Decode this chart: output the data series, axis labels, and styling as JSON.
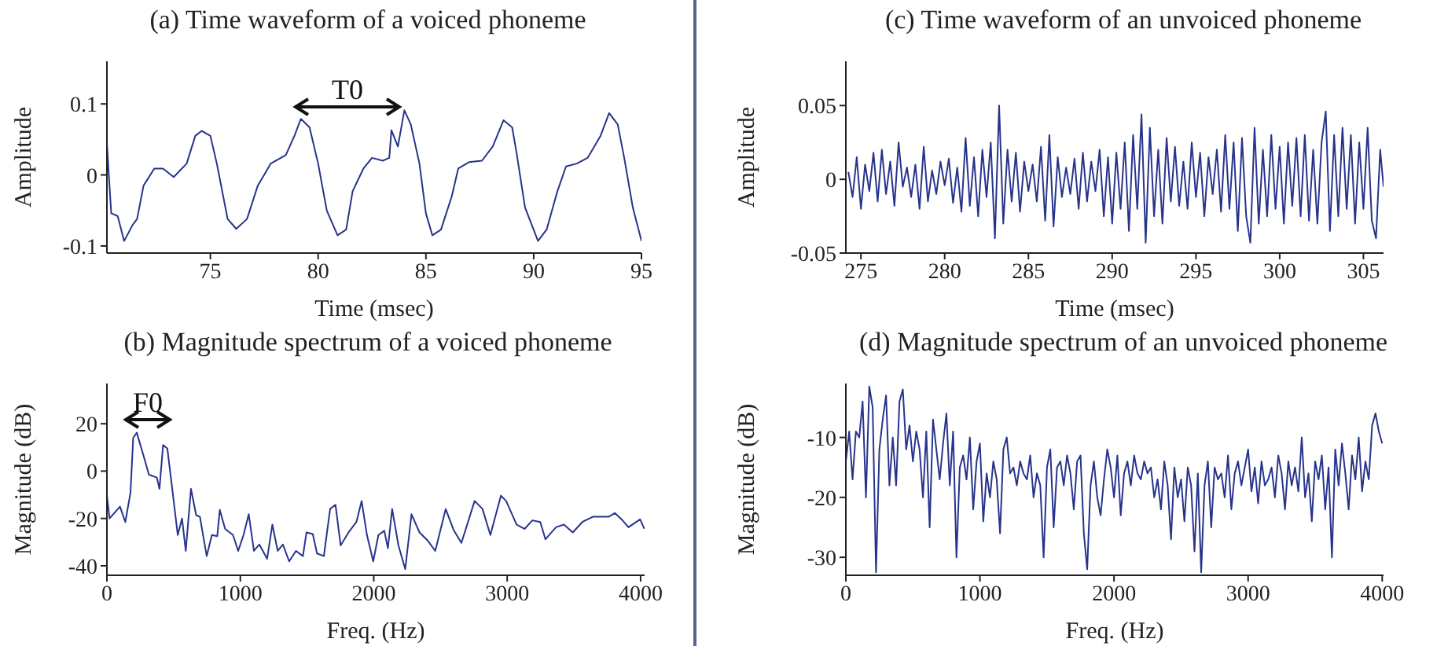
{
  "chart_data": [
    {
      "type": "line",
      "title": "(a) Time waveform of a voiced phoneme",
      "xlabel": "Time (msec)",
      "ylabel": "Amplitude",
      "xlim": [
        70.2,
        95
      ],
      "xticks": [
        75,
        80,
        85,
        90,
        95
      ],
      "ylim": [
        -0.11,
        0.16
      ],
      "yticks": [
        -0.1,
        0,
        0.1
      ],
      "color": "#27348b",
      "annotations": [
        "T0"
      ],
      "x": [
        70.2,
        70.4,
        70.7,
        71.0,
        71.4,
        71.6,
        71.9,
        72.4,
        72.8,
        73.3,
        73.9,
        74.3,
        74.6,
        75.0,
        75.3,
        75.8,
        76.2,
        76.7,
        77.2,
        77.8,
        78.5,
        78.9,
        79.2,
        79.6,
        80.0,
        80.4,
        80.9,
        81.3,
        81.6,
        82.1,
        82.5,
        83.0,
        83.3,
        83.4,
        83.7,
        84.0,
        84.3,
        84.7,
        85.0,
        85.3,
        85.7,
        86.2,
        86.5,
        87.0,
        87.6,
        88.1,
        88.6,
        89.0,
        89.2,
        89.6,
        90.2,
        90.6,
        91.1,
        91.5,
        92.0,
        92.5,
        93.1,
        93.5,
        93.9,
        94.2,
        94.6,
        94.9,
        95.0
      ],
      "values": [
        0.044,
        -0.054,
        -0.058,
        -0.093,
        -0.07,
        -0.062,
        -0.015,
        0.009,
        0.009,
        -0.003,
        0.016,
        0.055,
        0.062,
        0.055,
        0.016,
        -0.062,
        -0.076,
        -0.062,
        -0.015,
        0.016,
        0.028,
        0.055,
        0.079,
        0.067,
        0.016,
        -0.05,
        -0.085,
        -0.077,
        -0.023,
        0.009,
        0.024,
        0.02,
        0.024,
        0.063,
        0.04,
        0.091,
        0.071,
        0.016,
        -0.054,
        -0.085,
        -0.077,
        -0.03,
        0.009,
        0.018,
        0.02,
        0.04,
        0.077,
        0.067,
        0.032,
        -0.046,
        -0.093,
        -0.077,
        -0.023,
        0.012,
        0.016,
        0.024,
        0.055,
        0.087,
        0.071,
        0.024,
        -0.046,
        -0.081,
        -0.093
      ]
    },
    {
      "type": "line",
      "title": "(c) Time waveform of an unvoiced phoneme",
      "xlabel": "Time (msec)",
      "ylabel": "Amplitude",
      "xlim": [
        274.1,
        306.2
      ],
      "xticks": [
        275,
        280,
        285,
        290,
        295,
        300,
        305
      ],
      "ylim": [
        -0.05,
        0.08
      ],
      "yticks": [
        -0.05,
        0,
        0.05
      ],
      "color": "#27348b",
      "x": [
        274.25,
        274.5,
        274.75,
        275,
        275.25,
        275.5,
        275.75,
        276,
        276.25,
        276.5,
        276.75,
        277,
        277.25,
        277.5,
        277.75,
        278,
        278.25,
        278.5,
        278.75,
        279,
        279.25,
        279.5,
        279.75,
        280,
        280.25,
        280.5,
        280.75,
        281,
        281.25,
        281.5,
        281.75,
        282,
        282.25,
        282.5,
        282.75,
        283,
        283.25,
        283.5,
        283.75,
        284,
        284.25,
        284.5,
        284.75,
        285,
        285.25,
        285.5,
        285.75,
        286,
        286.25,
        286.5,
        286.75,
        287,
        287.25,
        287.5,
        287.75,
        288,
        288.25,
        288.5,
        288.75,
        289,
        289.25,
        289.5,
        289.75,
        290,
        290.25,
        290.5,
        290.75,
        291,
        291.25,
        291.5,
        291.75,
        292,
        292.25,
        292.5,
        292.75,
        293,
        293.25,
        293.5,
        293.75,
        294,
        294.25,
        294.5,
        294.75,
        295,
        295.25,
        295.5,
        295.75,
        296,
        296.25,
        296.5,
        296.75,
        297,
        297.25,
        297.5,
        297.75,
        298,
        298.25,
        298.5,
        298.75,
        299,
        299.25,
        299.5,
        299.75,
        300,
        300.25,
        300.5,
        300.75,
        301,
        301.25,
        301.5,
        301.75,
        302,
        302.25,
        302.5,
        302.75,
        303,
        303.25,
        303.5,
        303.75,
        304,
        304.25,
        304.5,
        304.75,
        305,
        305.25,
        305.5,
        305.75,
        306,
        306.2
      ],
      "values": [
        0.005,
        -0.012,
        0.015,
        -0.02,
        0.01,
        -0.008,
        0.018,
        -0.015,
        0.02,
        -0.01,
        0.012,
        -0.018,
        0.025,
        -0.005,
        0.008,
        -0.012,
        0.01,
        -0.02,
        0.022,
        -0.015,
        0.006,
        -0.01,
        0.012,
        -0.004,
        0.014,
        -0.016,
        0.008,
        -0.022,
        0.028,
        -0.018,
        0.015,
        -0.025,
        0.02,
        -0.012,
        0.025,
        -0.04,
        0.05,
        -0.03,
        0.02,
        -0.015,
        0.018,
        -0.022,
        0.012,
        -0.008,
        0.01,
        -0.015,
        0.022,
        -0.028,
        0.03,
        -0.032,
        0.015,
        -0.012,
        0.008,
        -0.01,
        0.014,
        -0.02,
        0.018,
        -0.015,
        0.012,
        -0.008,
        0.02,
        -0.025,
        0.015,
        -0.03,
        0.018,
        -0.02,
        0.025,
        -0.035,
        0.03,
        -0.02,
        0.044,
        -0.043,
        0.035,
        -0.025,
        0.02,
        -0.03,
        0.028,
        -0.015,
        0.022,
        -0.018,
        0.012,
        -0.02,
        0.025,
        -0.012,
        0.018,
        -0.025,
        0.015,
        -0.01,
        0.02,
        -0.022,
        0.03,
        -0.02,
        0.025,
        -0.035,
        0.028,
        -0.025,
        -0.043,
        0.035,
        -0.03,
        0.02,
        -0.025,
        0.03,
        -0.02,
        0.022,
        -0.03,
        0.025,
        -0.018,
        0.028,
        -0.025,
        0.03,
        -0.028,
        0.02,
        -0.03,
        0.025,
        0.046,
        -0.035,
        0.03,
        -0.025,
        0.035,
        -0.02,
        0.03,
        -0.03,
        0.025,
        -0.02,
        0.035,
        -0.028,
        -0.04,
        0.02,
        -0.005
      ]
    },
    {
      "type": "line",
      "title": "(b) Magnitude spectrum of a voiced phoneme",
      "xlabel": "Freq. (Hz)",
      "ylabel": "Magnitude (dB)",
      "xlim": [
        0,
        4030
      ],
      "xticks": [
        0,
        1000,
        2000,
        3000,
        4000
      ],
      "ylim": [
        -44,
        37
      ],
      "yticks": [
        -40,
        -20,
        0,
        20
      ],
      "color": "#27348b",
      "annotations": [
        "F0"
      ],
      "x": [
        0,
        20,
        98,
        138,
        177,
        197,
        224,
        276,
        315,
        374,
        394,
        421,
        453,
        484,
        531,
        563,
        591,
        630,
        669,
        697,
        748,
        787,
        827,
        846,
        886,
        945,
        984,
        1024,
        1063,
        1102,
        1142,
        1201,
        1240,
        1280,
        1319,
        1366,
        1417,
        1469,
        1496,
        1543,
        1575,
        1626,
        1673,
        1713,
        1752,
        1811,
        1870,
        1909,
        1949,
        1996,
        2035,
        2079,
        2106,
        2138,
        2185,
        2236,
        2283,
        2343,
        2402,
        2461,
        2539,
        2598,
        2657,
        2756,
        2815,
        2874,
        2953,
        2992,
        3071,
        3130,
        3189,
        3248,
        3287,
        3366,
        3425,
        3492,
        3563,
        3642,
        3760,
        3807,
        3858,
        3909,
        3996,
        4028
      ],
      "values": [
        -10.4,
        -20,
        -15,
        -21.5,
        -9,
        14,
        16.2,
        6.2,
        -1.5,
        -2.7,
        -7.5,
        11,
        9.5,
        -4.9,
        -27,
        -20,
        -33.7,
        -7.5,
        -18.6,
        -19.3,
        -35.9,
        -27,
        -27.5,
        -16.4,
        -24.4,
        -27,
        -33.7,
        -27,
        -18.2,
        -33.7,
        -31,
        -37,
        -22.6,
        -33.7,
        -31,
        -38.1,
        -33.7,
        -35.9,
        -25.9,
        -26.6,
        -34.8,
        -35.9,
        -16,
        -14.2,
        -31.4,
        -25.9,
        -21.5,
        -12.6,
        -27,
        -38.1,
        -27,
        -25.2,
        -32.6,
        -16,
        -31.4,
        -41.4,
        -18.2,
        -25.9,
        -29.2,
        -33.7,
        -16,
        -24.8,
        -30.3,
        -12.6,
        -16,
        -27,
        -10.4,
        -12.6,
        -22.6,
        -24.4,
        -20.8,
        -21.5,
        -28.8,
        -23.7,
        -22.6,
        -25.9,
        -21.5,
        -19.3,
        -19.3,
        -17.7,
        -20.4,
        -23.7,
        -20.4,
        -24.4
      ]
    },
    {
      "type": "line",
      "title": "(d) Magnitude spectrum of an unvoiced phoneme",
      "xlabel": "Freq. (Hz)",
      "ylabel": "Magnitude (dB)",
      "xlim": [
        0,
        4010
      ],
      "xticks": [
        0,
        1000,
        2000,
        3000,
        4000
      ],
      "ylim": [
        -33,
        -1
      ],
      "yticks": [
        -30,
        -20,
        -10
      ],
      "color": "#27348b",
      "x": [
        0,
        25,
        50,
        75,
        100,
        125,
        150,
        175,
        200,
        225,
        250,
        275,
        300,
        325,
        350,
        375,
        400,
        425,
        450,
        475,
        500,
        525,
        550,
        575,
        600,
        625,
        650,
        675,
        700,
        725,
        750,
        775,
        800,
        825,
        850,
        875,
        900,
        925,
        950,
        975,
        1000,
        1025,
        1050,
        1075,
        1100,
        1125,
        1150,
        1175,
        1200,
        1225,
        1250,
        1275,
        1300,
        1325,
        1350,
        1375,
        1400,
        1425,
        1450,
        1475,
        1500,
        1525,
        1550,
        1575,
        1600,
        1625,
        1650,
        1675,
        1700,
        1725,
        1750,
        1775,
        1800,
        1825,
        1850,
        1875,
        1900,
        1925,
        1950,
        1975,
        2000,
        2025,
        2050,
        2075,
        2100,
        2125,
        2150,
        2175,
        2200,
        2225,
        2250,
        2275,
        2300,
        2325,
        2350,
        2375,
        2400,
        2425,
        2450,
        2475,
        2500,
        2525,
        2550,
        2575,
        2600,
        2625,
        2650,
        2675,
        2700,
        2725,
        2750,
        2775,
        2800,
        2825,
        2850,
        2875,
        2900,
        2925,
        2950,
        2975,
        3000,
        3025,
        3050,
        3075,
        3100,
        3125,
        3150,
        3175,
        3200,
        3225,
        3250,
        3275,
        3300,
        3325,
        3350,
        3375,
        3400,
        3425,
        3450,
        3475,
        3500,
        3525,
        3550,
        3575,
        3600,
        3625,
        3650,
        3675,
        3700,
        3725,
        3750,
        3775,
        3800,
        3825,
        3850,
        3875,
        3900,
        3925,
        3950,
        3975,
        4000
      ],
      "values": [
        -14,
        -9,
        -17,
        -9,
        -10,
        -4,
        -20,
        -1.5,
        -5,
        -32.5,
        -12,
        -7,
        -3,
        -18,
        -10,
        -18,
        -4,
        -2,
        -12,
        -8,
        -14,
        -9,
        -12,
        -20,
        -9,
        -25,
        -7,
        -12,
        -17,
        -11,
        -6,
        -18,
        -9,
        -30,
        -15,
        -13,
        -17,
        -10,
        -22,
        -14,
        -11,
        -24,
        -16,
        -20,
        -14,
        -17,
        -26,
        -12,
        -10,
        -16,
        -15,
        -18,
        -14,
        -16,
        -17,
        -13,
        -20,
        -16,
        -18,
        -30,
        -15,
        -12,
        -25,
        -15,
        -14,
        -18,
        -13,
        -16,
        -22,
        -14,
        -13,
        -26,
        -32,
        -18,
        -14,
        -20,
        -23,
        -17,
        -12,
        -15,
        -20,
        -13,
        -23,
        -16,
        -14,
        -18,
        -13,
        -16,
        -17,
        -14,
        -16,
        -15,
        -20,
        -17,
        -22,
        -14,
        -18,
        -27,
        -15,
        -20,
        -17,
        -24,
        -15,
        -18,
        -29,
        -16,
        -32.5,
        -18,
        -14,
        -25,
        -15,
        -17,
        -16,
        -20,
        -13,
        -22,
        -16,
        -14,
        -18,
        -15,
        -12,
        -19,
        -15,
        -21,
        -14,
        -18,
        -17,
        -15,
        -20,
        -13,
        -16,
        -22,
        -14,
        -18,
        -15,
        -19,
        -10,
        -20,
        -16,
        -24,
        -14,
        -17,
        -13,
        -22,
        -15,
        -30,
        -12,
        -18,
        -11,
        -16,
        -22,
        -13,
        -17,
        -10,
        -19,
        -14,
        -17,
        -8,
        -6,
        -9,
        -11
      ]
    }
  ]
}
